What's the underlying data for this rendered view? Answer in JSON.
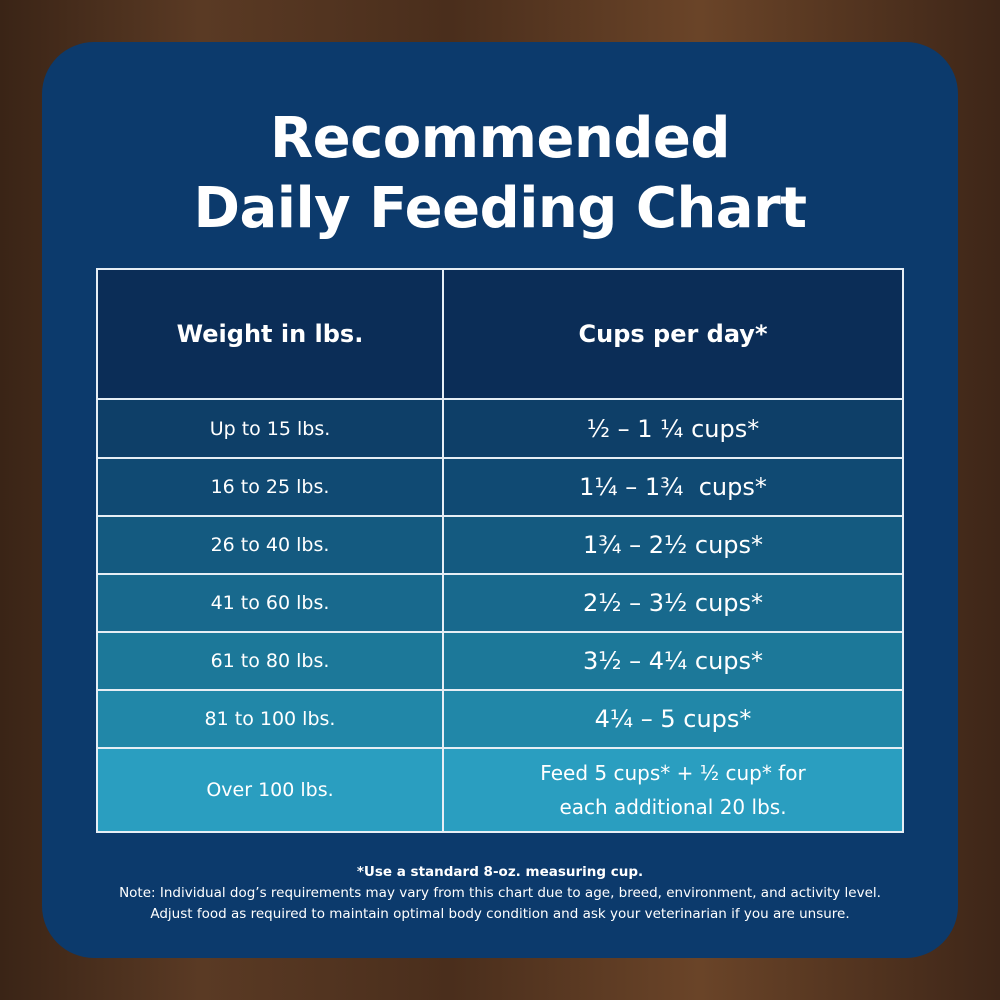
{
  "title": {
    "line1": "Recommended",
    "line2": "Daily Feeding Chart"
  },
  "table": {
    "headers": [
      "Weight in lbs.",
      "Cups per day*"
    ],
    "rows": [
      {
        "weight": "Up to 15 lbs.",
        "cups": "½ – 1 ¼ cups*"
      },
      {
        "weight": "16 to 25 lbs.",
        "cups": "1¼ – 1¾  cups*"
      },
      {
        "weight": "26 to 40 lbs.",
        "cups": "1¾ – 2½ cups*"
      },
      {
        "weight": "41 to 60 lbs.",
        "cups": "2½ – 3½ cups*"
      },
      {
        "weight": "61 to 80 lbs.",
        "cups": "3½ – 4¼ cups*"
      },
      {
        "weight": "81 to 100 lbs.",
        "cups": "4¼ – 5 cups*"
      },
      {
        "weight": "Over 100 lbs.",
        "cups_line1": "Feed 5 cups* + ½ cup* for",
        "cups_line2": "each additional 20 lbs."
      }
    ],
    "row_colors": [
      "#0e3f68",
      "#104a73",
      "#145a80",
      "#18698d",
      "#1c7899",
      "#2187a8",
      "#2a9ec0"
    ]
  },
  "notes": {
    "footnote": "*Use a standard 8-oz. measuring cup.",
    "line1": "Note: Individual dog’s requirements may vary from this chart due to age, breed, environment, and activity level.",
    "line2": "Adjust food as required to maintain optimal body condition and ask your veterinarian if you are unsure."
  }
}
